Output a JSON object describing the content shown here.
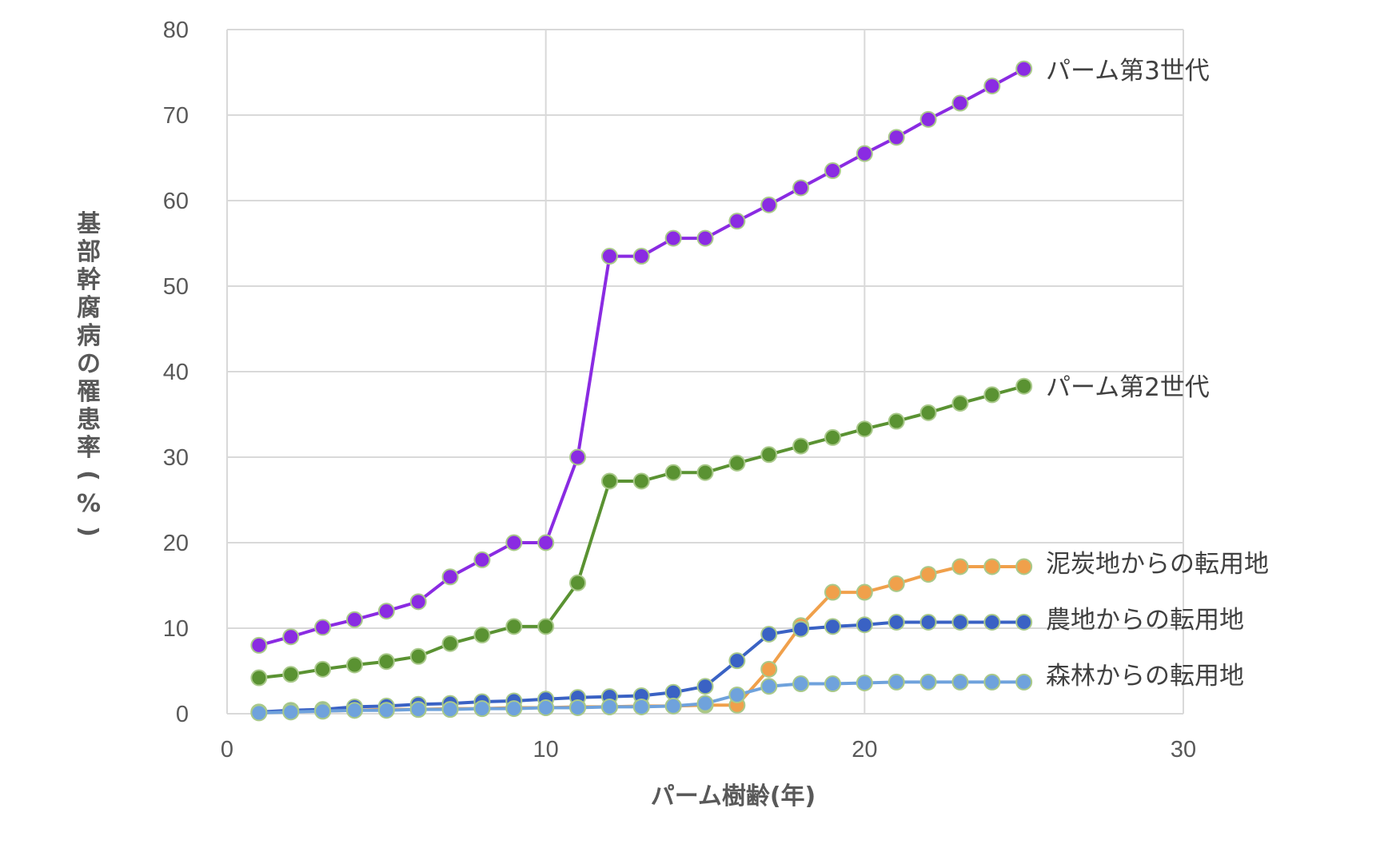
{
  "chart_data": {
    "type": "line",
    "title": "",
    "xlabel": "パーム樹齢(年)",
    "ylabel": "基部幹腐病の罹患率(%)",
    "xlim": [
      0,
      30
    ],
    "ylim": [
      0,
      80
    ],
    "xticks": [
      0,
      10,
      20,
      30
    ],
    "yticks": [
      0,
      10,
      20,
      30,
      40,
      50,
      60,
      70,
      80
    ],
    "grid": true,
    "legend": "inline-right",
    "x": [
      1,
      2,
      3,
      4,
      5,
      6,
      7,
      8,
      9,
      10,
      11,
      12,
      13,
      14,
      15,
      16,
      17,
      18,
      19,
      20,
      21,
      22,
      23,
      24,
      25
    ],
    "series": [
      {
        "name": "パーム第3世代",
        "color": "#8a2be2",
        "values": [
          8,
          9,
          10.1,
          11,
          12,
          13.1,
          16,
          18,
          20,
          20,
          30,
          53.5,
          53.5,
          55.6,
          55.6,
          57.6,
          59.5,
          61.5,
          63.5,
          65.5,
          67.4,
          69.5,
          71.4,
          73.4,
          75.4
        ]
      },
      {
        "name": "パーム第2世代",
        "color": "#5a9232",
        "values": [
          4.2,
          4.6,
          5.2,
          5.7,
          6.1,
          6.7,
          8.2,
          9.2,
          10.2,
          10.2,
          15.3,
          27.2,
          27.2,
          28.2,
          28.2,
          29.3,
          30.3,
          31.3,
          32.3,
          33.3,
          34.2,
          35.2,
          36.3,
          37.3,
          38.3
        ]
      },
      {
        "name": "泥炭地からの転用地",
        "color": "#f0a04b",
        "values": [
          0.2,
          0.3,
          0.3,
          0.4,
          0.5,
          0.5,
          0.6,
          0.6,
          0.7,
          0.7,
          0.8,
          0.8,
          0.9,
          0.9,
          1,
          1,
          5.2,
          10.3,
          14.2,
          14.2,
          15.2,
          16.3,
          17.2,
          17.2,
          17.2
        ]
      },
      {
        "name": "農地からの転用地",
        "color": "#3a62c4",
        "values": [
          0.2,
          0.4,
          0.5,
          0.8,
          0.9,
          1.1,
          1.2,
          1.4,
          1.5,
          1.7,
          1.9,
          2,
          2.1,
          2.5,
          3.2,
          6.2,
          9.3,
          9.9,
          10.2,
          10.4,
          10.7,
          10.7,
          10.7,
          10.7,
          10.7
        ]
      },
      {
        "name": "森林からの転用地",
        "color": "#6fa2dc",
        "values": [
          0.1,
          0.2,
          0.3,
          0.4,
          0.4,
          0.5,
          0.5,
          0.6,
          0.6,
          0.7,
          0.7,
          0.8,
          0.8,
          0.9,
          1.2,
          2.2,
          3.2,
          3.5,
          3.5,
          3.6,
          3.7,
          3.7,
          3.7,
          3.7,
          3.7
        ]
      }
    ]
  }
}
